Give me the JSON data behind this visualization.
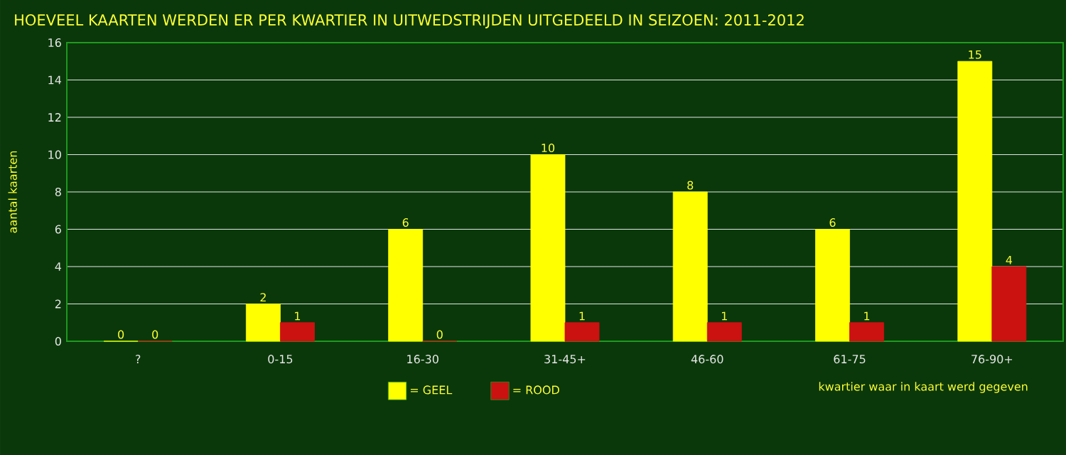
{
  "chart_data": {
    "type": "bar",
    "title": "HOEVEEL KAARTEN WERDEN ER PER KWARTIER IN UITWEDSTRIJDEN UITGEDEELD IN SEIZOEN: 2011-2012",
    "categories": [
      "?",
      "0-15",
      "16-30",
      "31-45+",
      "46-60",
      "61-75",
      "76-90+"
    ],
    "series": [
      {
        "name": "= GEEL",
        "color": "#ffff00",
        "values": [
          0,
          2,
          6,
          10,
          8,
          6,
          15
        ]
      },
      {
        "name": "= ROOD",
        "color": "#cc1111",
        "values": [
          0,
          1,
          0,
          1,
          1,
          1,
          4
        ]
      }
    ],
    "xlabel": "kwartier waar in kaart werd gegeven",
    "ylabel": "aantal kaarten",
    "ylim": [
      0,
      16
    ],
    "yticks": [
      0,
      2,
      4,
      6,
      8,
      10,
      12,
      14,
      16
    ],
    "grid": "y",
    "legend": "bottom",
    "data_labels": true
  }
}
